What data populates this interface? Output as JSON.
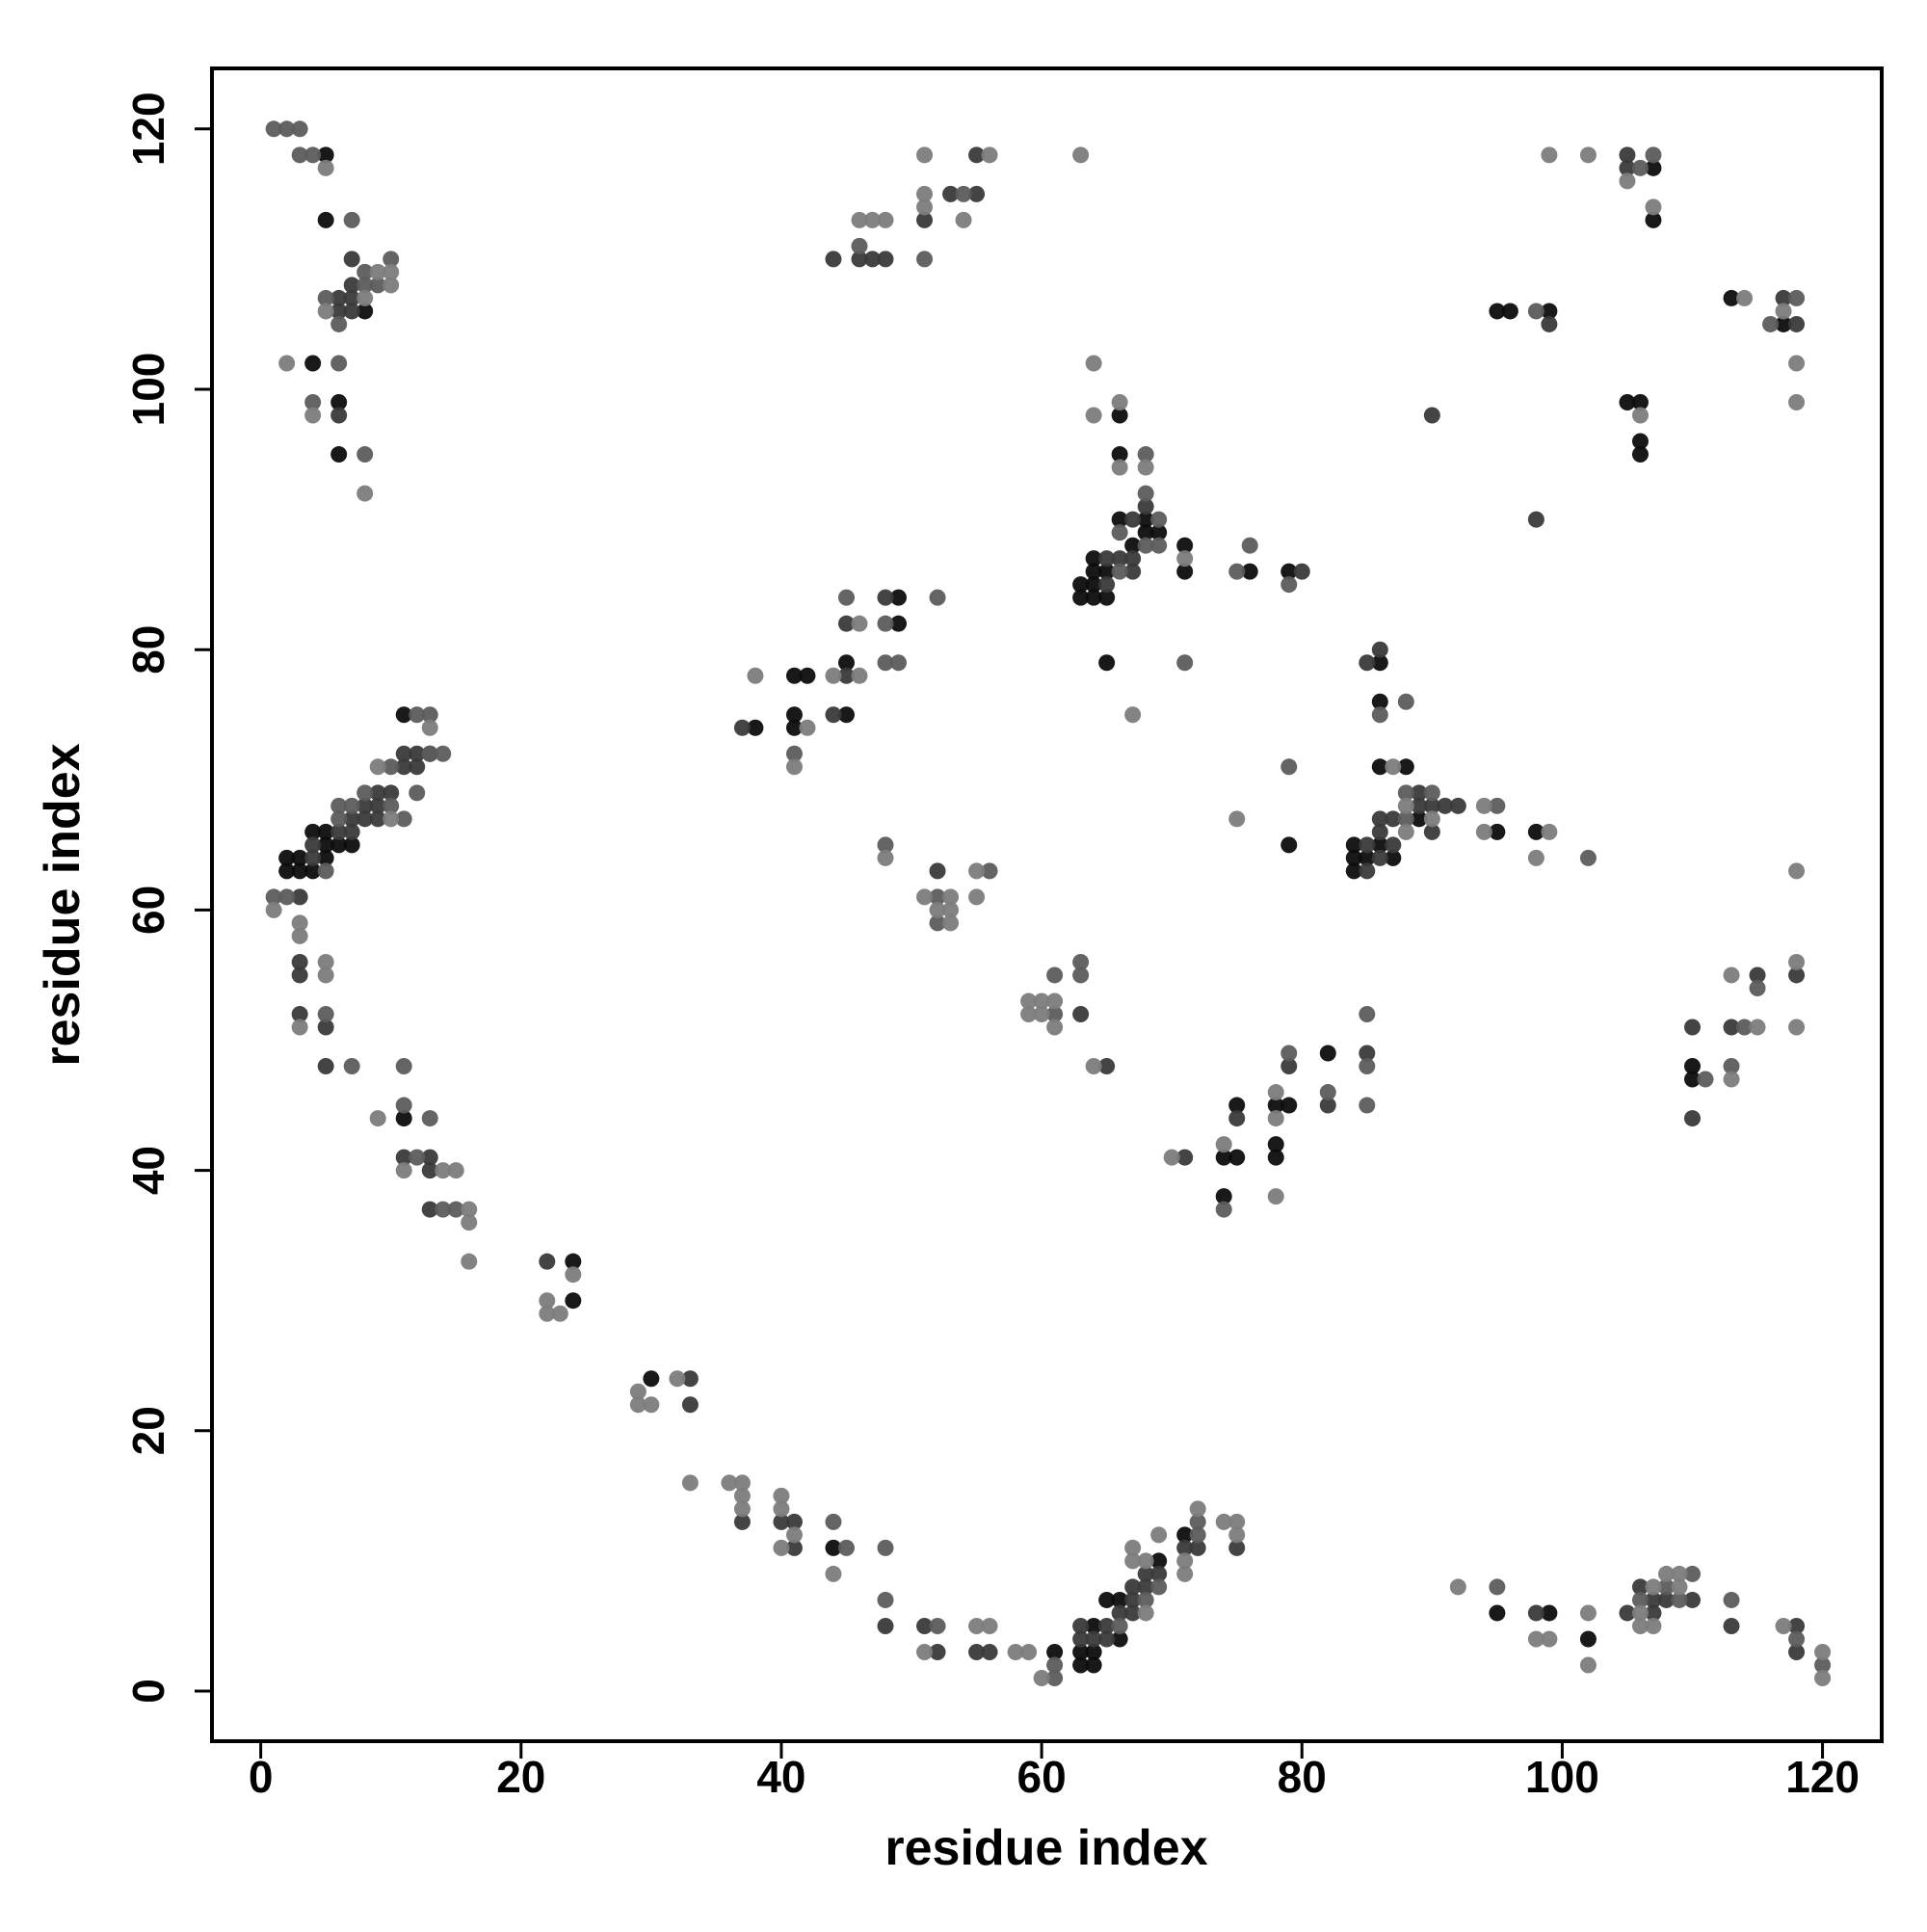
{
  "chart_data": {
    "type": "scatter",
    "xlabel": "residue index",
    "ylabel": "residue index",
    "xlim": [
      -3.6,
      124.4
    ],
    "ylim": [
      -3.7,
      124.5
    ],
    "xticks": [
      0,
      20,
      40,
      60,
      80,
      100,
      120
    ],
    "yticks": [
      0,
      20,
      40,
      60,
      80,
      100,
      120
    ],
    "series": [
      {
        "color": "#0d0d0d",
        "x": [
          5,
          5,
          8,
          4,
          6,
          6,
          2,
          2,
          3,
          3,
          4,
          4,
          5,
          5,
          5,
          6,
          7,
          11,
          11,
          24,
          24,
          30,
          44,
          61,
          63,
          63,
          64,
          64,
          64,
          65,
          66,
          66,
          69,
          71,
          95,
          99,
          102,
          38,
          41,
          41,
          41,
          42,
          45,
          45,
          49,
          49,
          63,
          63,
          64,
          64,
          64,
          64,
          65,
          65,
          66,
          66,
          66,
          67,
          68,
          68,
          69,
          71,
          71,
          65,
          76,
          79,
          79,
          84,
          84,
          84,
          85,
          86,
          86,
          86,
          86,
          87,
          88,
          89,
          95,
          98,
          74,
          74,
          75,
          75,
          78,
          78,
          78,
          79,
          82,
          110,
          110,
          95,
          96,
          99,
          105,
          106,
          106,
          106,
          107,
          107,
          113,
          117
        ],
        "values": [
          118,
          113,
          106,
          102,
          99,
          95,
          64,
          63,
          64,
          63,
          63,
          66,
          66,
          65,
          64,
          65,
          65,
          75,
          44,
          33,
          30,
          24,
          11,
          3,
          3,
          2,
          5,
          3,
          2,
          7,
          7,
          4,
          10,
          12,
          6,
          6,
          4,
          74,
          78,
          75,
          74,
          78,
          79,
          75,
          84,
          82,
          85,
          84,
          87,
          86,
          85,
          84,
          86,
          84,
          98,
          95,
          90,
          88,
          90,
          89,
          89,
          88,
          86,
          79,
          86,
          86,
          65,
          65,
          64,
          63,
          64,
          79,
          76,
          71,
          65,
          64,
          71,
          67,
          66,
          66,
          41,
          38,
          45,
          41,
          45,
          42,
          41,
          45,
          49,
          48,
          47,
          106,
          106,
          106,
          99,
          99,
          96,
          95,
          117,
          113,
          107,
          105
        ]
      },
      {
        "color": "#3a3a3a",
        "x": [
          6,
          7,
          6,
          7,
          7,
          7,
          6,
          3,
          4,
          4,
          6,
          7,
          7,
          8,
          8,
          9,
          9,
          9,
          10,
          11,
          11,
          12,
          12,
          13,
          3,
          3,
          3,
          5,
          5,
          11,
          13,
          13,
          13,
          22,
          33,
          33,
          37,
          40,
          41,
          41,
          48,
          51,
          52,
          55,
          56,
          63,
          63,
          64,
          65,
          65,
          66,
          67,
          67,
          67,
          68,
          68,
          69,
          71,
          72,
          75,
          98,
          105,
          106,
          107,
          107,
          108,
          110,
          113,
          118,
          118,
          44,
          46,
          47,
          48,
          51,
          53,
          55,
          55,
          37,
          44,
          45,
          45,
          48,
          52,
          63,
          65,
          65,
          65,
          66,
          67,
          67,
          67,
          68,
          80,
          85,
          85,
          85,
          86,
          86,
          86,
          86,
          87,
          87,
          89,
          89,
          90,
          90,
          91,
          92,
          71,
          75,
          79,
          82,
          85,
          110,
          110,
          113,
          115,
          118,
          90,
          99,
          98,
          105,
          105,
          117,
          118
        ],
        "values": [
          107,
          107,
          106,
          106,
          110,
          108,
          98,
          61,
          64,
          65,
          66,
          67,
          66,
          68,
          67,
          69,
          68,
          67,
          69,
          71,
          72,
          72,
          71,
          72,
          56,
          55,
          52,
          51,
          48,
          41,
          41,
          40,
          37,
          33,
          24,
          22,
          13,
          13,
          13,
          11,
          5,
          5,
          3,
          3,
          3,
          5,
          4,
          4,
          5,
          4,
          6,
          8,
          7,
          6,
          9,
          8,
          9,
          11,
          11,
          11,
          6,
          6,
          8,
          7,
          6,
          7,
          7,
          5,
          5,
          3,
          110,
          110,
          110,
          110,
          113,
          115,
          118,
          115,
          74,
          75,
          82,
          78,
          84,
          63,
          52,
          48,
          87,
          85,
          87,
          90,
          87,
          86,
          91,
          86,
          65,
          63,
          79,
          80,
          67,
          66,
          64,
          67,
          65,
          69,
          68,
          68,
          66,
          68,
          68,
          41,
          44,
          48,
          45,
          49,
          51,
          44,
          51,
          55,
          55,
          98,
          105,
          90,
          118,
          117,
          107,
          105
        ]
      },
      {
        "color": "#5c5c5c",
        "x": [
          1,
          2,
          3,
          3,
          4,
          7,
          5,
          8,
          10,
          9,
          8,
          6,
          6,
          4,
          8,
          1,
          2,
          5,
          6,
          6,
          7,
          8,
          10,
          11,
          10,
          12,
          12,
          13,
          13,
          14,
          5,
          7,
          11,
          11,
          13,
          12,
          14,
          15,
          44,
          45,
          48,
          48,
          52,
          61,
          61,
          66,
          68,
          69,
          72,
          72,
          95,
          106,
          108,
          109,
          110,
          113,
          118,
          120,
          46,
          51,
          54,
          41,
          48,
          48,
          49,
          52,
          45,
          48,
          52,
          52,
          56,
          61,
          61,
          63,
          63,
          66,
          66,
          68,
          68,
          68,
          69,
          69,
          71,
          75,
          76,
          79,
          79,
          86,
          88,
          88,
          88,
          90,
          95,
          102,
          74,
          79,
          82,
          85,
          85,
          85,
          111,
          113,
          114,
          115,
          98,
          106,
          107,
          116,
          118
        ],
        "values": [
          120,
          120,
          120,
          118,
          118,
          113,
          107,
          109,
          110,
          108,
          108,
          105,
          102,
          99,
          95,
          61,
          61,
          63,
          67,
          68,
          68,
          69,
          68,
          67,
          71,
          69,
          75,
          75,
          72,
          72,
          52,
          48,
          48,
          45,
          44,
          41,
          37,
          37,
          13,
          11,
          11,
          7,
          5,
          2,
          1,
          5,
          7,
          8,
          13,
          12,
          8,
          7,
          8,
          7,
          9,
          7,
          4,
          2,
          111,
          110,
          115,
          72,
          82,
          79,
          79,
          84,
          84,
          65,
          61,
          59,
          63,
          55,
          52,
          56,
          55,
          89,
          86,
          95,
          92,
          88,
          90,
          88,
          79,
          86,
          88,
          85,
          71,
          75,
          76,
          69,
          67,
          69,
          68,
          64,
          37,
          49,
          46,
          52,
          48,
          45,
          47,
          48,
          51,
          54,
          106,
          117,
          118,
          105,
          107
        ]
      },
      {
        "color": "#7c7c7c",
        "x": [
          5,
          5,
          9,
          10,
          10,
          8,
          2,
          4,
          8,
          1,
          10,
          9,
          13,
          3,
          3,
          3,
          5,
          5,
          9,
          11,
          14,
          15,
          16,
          16,
          16,
          22,
          22,
          23,
          24,
          29,
          29,
          30,
          32,
          33,
          36,
          37,
          37,
          37,
          40,
          40,
          40,
          41,
          44,
          51,
          55,
          56,
          58,
          59,
          60,
          67,
          67,
          68,
          68,
          69,
          71,
          71,
          72,
          74,
          75,
          75,
          92,
          98,
          99,
          102,
          102,
          106,
          106,
          107,
          107,
          108,
          109,
          109,
          117,
          120,
          120,
          46,
          47,
          48,
          51,
          51,
          51,
          54,
          56,
          63,
          38,
          41,
          42,
          44,
          46,
          46,
          48,
          51,
          52,
          53,
          53,
          53,
          55,
          55,
          59,
          59,
          60,
          60,
          61,
          61,
          64,
          64,
          64,
          66,
          66,
          68,
          71,
          67,
          75,
          87,
          88,
          88,
          90,
          94,
          94,
          98,
          99,
          70,
          74,
          78,
          78,
          78,
          113,
          113,
          115,
          118,
          118,
          118,
          106,
          99,
          102,
          105,
          107,
          114,
          117,
          118,
          118
        ],
        "values": [
          117,
          106,
          109,
          109,
          108,
          107,
          102,
          98,
          92,
          60,
          67,
          71,
          74,
          59,
          58,
          51,
          56,
          55,
          44,
          40,
          40,
          40,
          37,
          36,
          33,
          30,
          29,
          29,
          32,
          23,
          22,
          22,
          24,
          16,
          16,
          16,
          15,
          14,
          15,
          14,
          11,
          12,
          9,
          3,
          5,
          5,
          3,
          3,
          1,
          11,
          10,
          10,
          6,
          12,
          10,
          9,
          14,
          13,
          13,
          12,
          8,
          4,
          4,
          6,
          2,
          6,
          5,
          8,
          5,
          9,
          9,
          8,
          5,
          3,
          1,
          113,
          113,
          113,
          118,
          115,
          114,
          113,
          118,
          118,
          78,
          71,
          74,
          78,
          82,
          78,
          64,
          61,
          60,
          61,
          60,
          59,
          63,
          61,
          53,
          52,
          53,
          52,
          53,
          51,
          48,
          102,
          98,
          99,
          94,
          94,
          87,
          75,
          67,
          71,
          68,
          66,
          67,
          68,
          66,
          64,
          66,
          41,
          42,
          46,
          44,
          38,
          55,
          47,
          51,
          56,
          51,
          63,
          98,
          118,
          118,
          116,
          114,
          107,
          106,
          102,
          99
        ]
      }
    ]
  }
}
